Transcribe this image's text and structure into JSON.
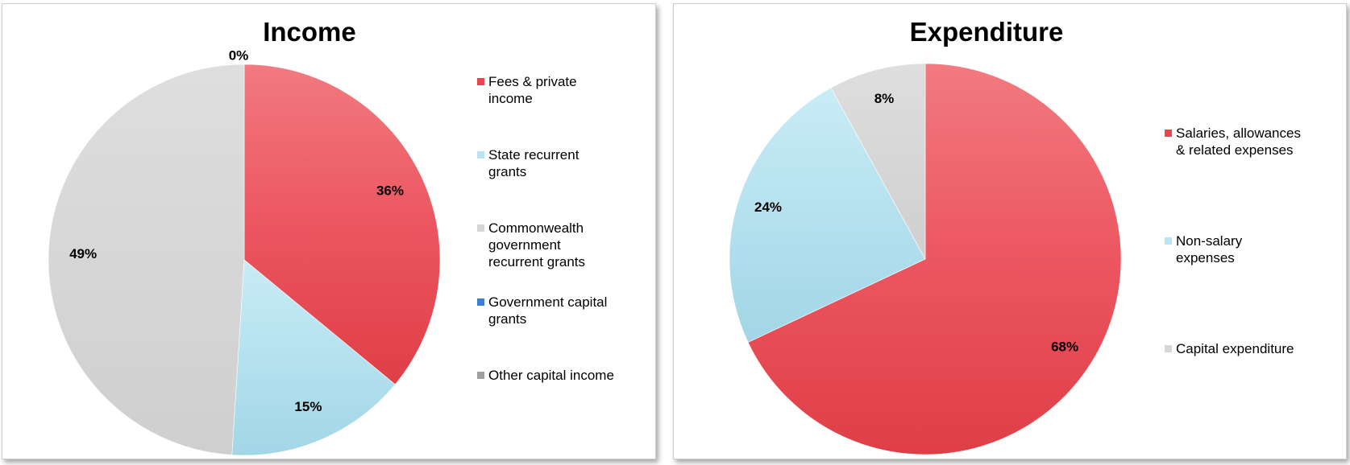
{
  "chart_data": [
    {
      "type": "pie",
      "title": "Income",
      "categories": [
        "Fees & private income",
        "State recurrent grants",
        "Commonwealth government recurrent grants",
        "Government capital grants",
        "Other capital income"
      ],
      "values": [
        36,
        15,
        49,
        0,
        0
      ],
      "data_labels": [
        "36%",
        "15%",
        "49%",
        "",
        "0%"
      ],
      "colors": [
        "#e8454f",
        "#a8dcea",
        "#d6d6d6",
        "#3a7fd5",
        "#a0a0a0"
      ],
      "legend_position": "right"
    },
    {
      "type": "pie",
      "title": "Expenditure",
      "categories": [
        "Salaries, allowances & related expenses",
        "Non-salary expenses",
        "Capital expenditure"
      ],
      "values": [
        68,
        24,
        8
      ],
      "data_labels": [
        "68%",
        "24%",
        "8%"
      ],
      "colors": [
        "#e8454f",
        "#a8dcea",
        "#d6d6d6"
      ],
      "legend_position": "right"
    }
  ],
  "legend_income": [
    {
      "line1": "Fees & private",
      "line2": "income"
    },
    {
      "line1": "State recurrent",
      "line2": "grants"
    },
    {
      "line1": "Commonwealth",
      "line2": "government",
      "line3": "recurrent grants"
    },
    {
      "line1": "Government capital",
      "line2": "grants"
    },
    {
      "line1": "Other capital income"
    }
  ],
  "legend_expenditure": [
    {
      "line1": "Salaries, allowances",
      "line2": "& related expenses"
    },
    {
      "line1": "Non-salary",
      "line2": "expenses"
    },
    {
      "line1": "Capital expenditure"
    }
  ]
}
